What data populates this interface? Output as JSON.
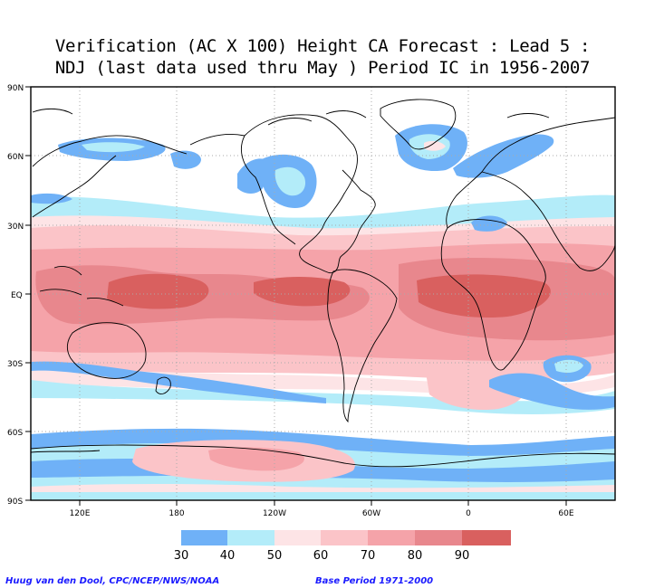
{
  "title": {
    "line1": "Verification (AC X 100) Height CA Forecast : Lead 5 :",
    "line2": "NDJ (last data used thru May ) Period IC in 1956-2007"
  },
  "map": {
    "lat_ticks": [
      "90N",
      "60N",
      "30N",
      "EQ",
      "30S",
      "60S",
      "90S"
    ],
    "lon_ticks": [
      "120E",
      "180",
      "120W",
      "60W",
      "0",
      "60E"
    ],
    "colors": {
      "c30": "#6fb1f7",
      "c40": "#b3ecf9",
      "c50": "#fde4e6",
      "c60": "#fbc4c8",
      "c70": "#f5a3a9",
      "c80": "#e8878d",
      "c90": "#d9605f"
    }
  },
  "colorbar": {
    "labels": [
      "30",
      "40",
      "50",
      "60",
      "70",
      "80",
      "90"
    ],
    "colors": [
      "#6fb1f7",
      "#b3ecf9",
      "#fde4e6",
      "#fbc4c8",
      "#f5a3a9",
      "#e8878d",
      "#d9605f"
    ]
  },
  "footer": {
    "credit": "Huug van den Dool, CPC/NCEP/NWS/NOAA",
    "base_period": "Base Period 1971-2000"
  }
}
